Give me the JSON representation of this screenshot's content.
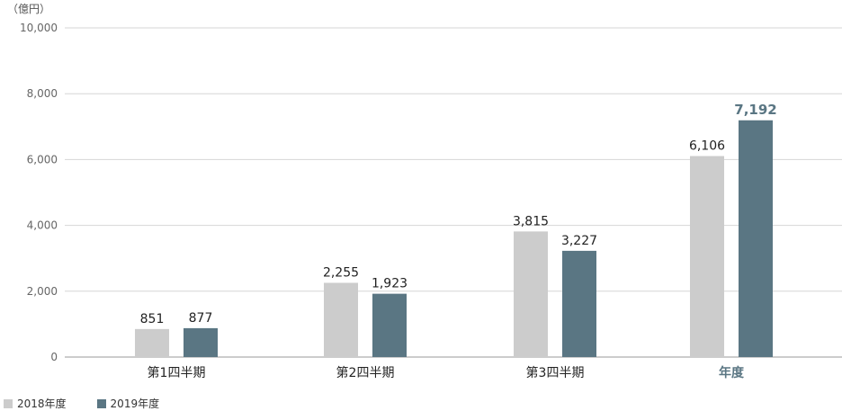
{
  "chart_data": {
    "type": "bar",
    "unit_label": "（億円）",
    "categories": [
      "第1四半期",
      "第2四半期",
      "第3四半期",
      "年度"
    ],
    "category_emphasis": [
      false,
      false,
      false,
      true
    ],
    "series": [
      {
        "name": "2018年度",
        "color": "#cccccc",
        "values": [
          851,
          2255,
          3815,
          6106
        ],
        "labels": [
          "851",
          "2,255",
          "3,815",
          "6,106"
        ]
      },
      {
        "name": "2019年度",
        "color": "#5a7683",
        "values": [
          877,
          1923,
          3227,
          7192
        ],
        "labels": [
          "877",
          "1,923",
          "3,227",
          "7,192"
        ]
      }
    ],
    "emphasis_color": "#5a7683",
    "ylim": [
      0,
      10000
    ],
    "yticks": [
      0,
      2000,
      4000,
      6000,
      8000,
      10000
    ],
    "ytick_labels": [
      "0",
      "2,000",
      "4,000",
      "6,000",
      "8,000",
      "10,000"
    ],
    "grid": true,
    "legend_position": "bottom-left"
  }
}
